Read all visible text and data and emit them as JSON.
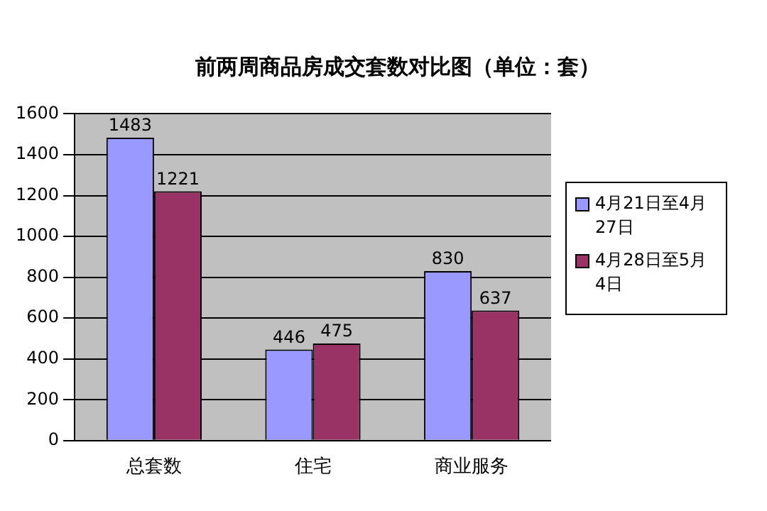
{
  "chart_data": {
    "type": "bar",
    "title": "前两周商品房成交套数对比图（单位：套）",
    "categories": [
      "总套数",
      "住宅",
      "商业服务"
    ],
    "series": [
      {
        "name": "4月21日至4月27日",
        "color": "#9999ff",
        "values": [
          1483,
          446,
          830
        ]
      },
      {
        "name": "4月28日至5月4日",
        "color": "#993366",
        "values": [
          1221,
          475,
          637
        ]
      }
    ],
    "ylim": [
      0,
      1600
    ],
    "yticks": [
      0,
      200,
      400,
      600,
      800,
      1000,
      1200,
      1400,
      1600
    ],
    "grid": "y",
    "legend": "right",
    "data_labels": true
  }
}
